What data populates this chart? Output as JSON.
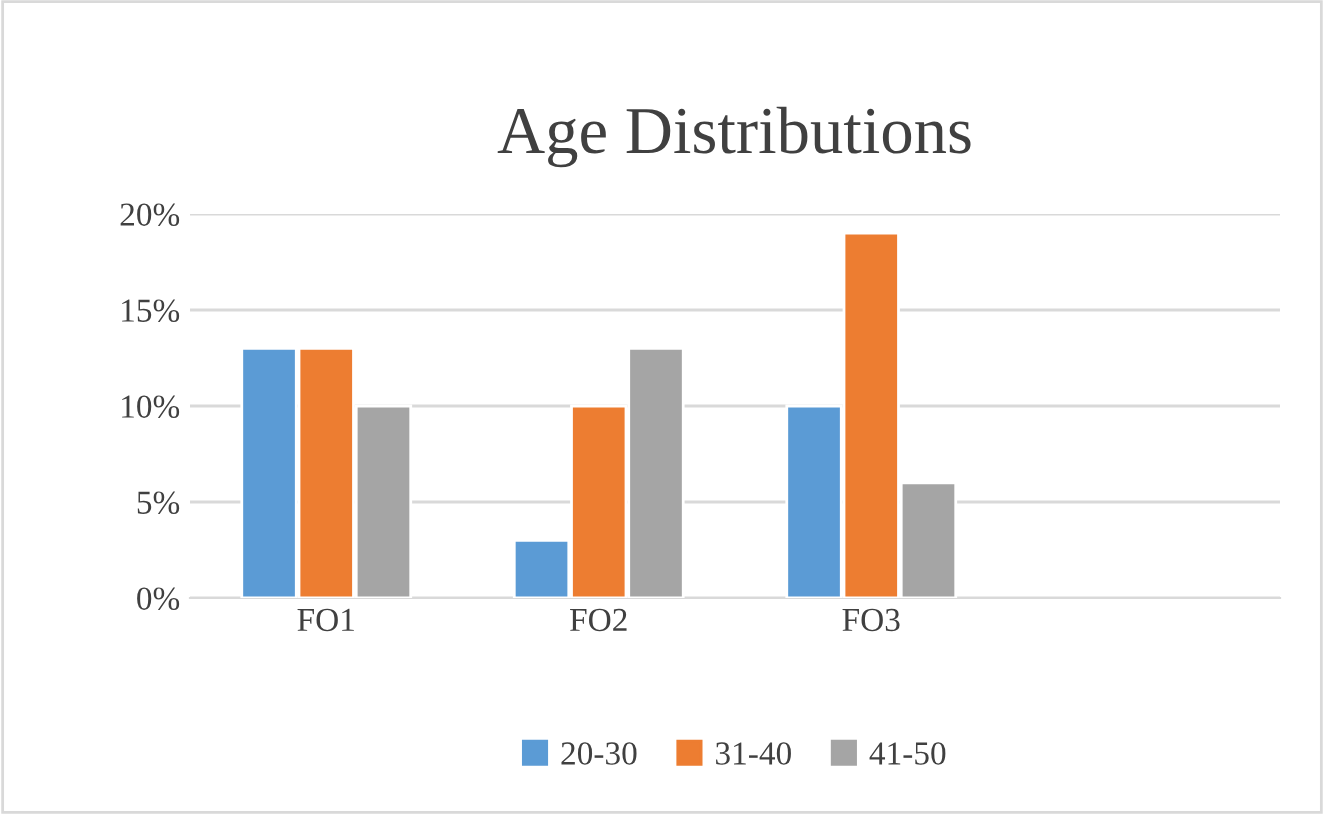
{
  "chart_data": {
    "type": "bar",
    "title": "Age Distributions",
    "categories": [
      "FO1",
      "FO2",
      "FO3",
      null
    ],
    "series": [
      {
        "name": "20-30",
        "color": "#5b9bd5",
        "values": [
          13,
          3,
          10,
          null
        ]
      },
      {
        "name": "31-40",
        "color": "#ed7d31",
        "values": [
          13,
          10,
          19,
          null
        ]
      },
      {
        "name": "41-50",
        "color": "#a5a5a5",
        "values": [
          10,
          13,
          6,
          null
        ]
      }
    ],
    "ylim": [
      0,
      20
    ],
    "yticks": [
      {
        "value": 0,
        "label": "0%"
      },
      {
        "value": 5,
        "label": "5%"
      },
      {
        "value": 10,
        "label": "10%"
      },
      {
        "value": 15,
        "label": "15%"
      },
      {
        "value": 20,
        "label": "20%"
      }
    ],
    "grid": "y",
    "legend": "bottom"
  }
}
